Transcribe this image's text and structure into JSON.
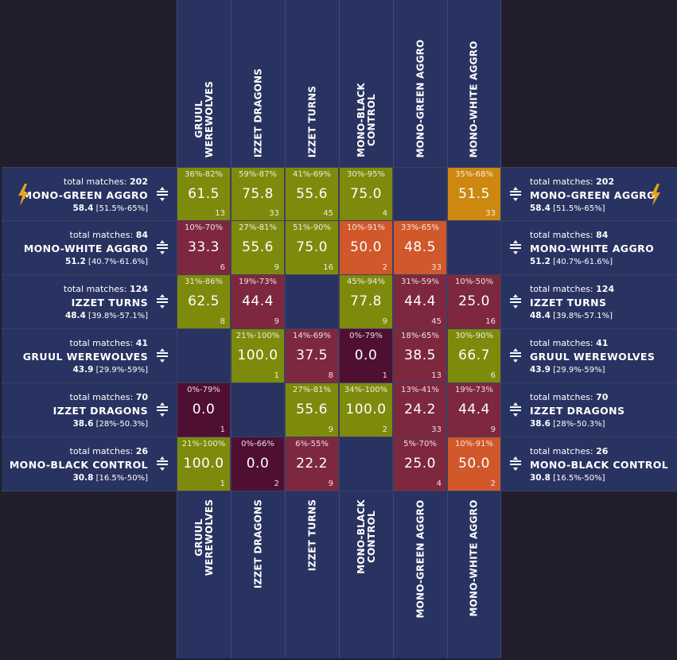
{
  "columns": [
    {
      "label": "GRUUL\nWEREWOLVES"
    },
    {
      "label": "IZZET DRAGONS"
    },
    {
      "label": "IZZET TURNS"
    },
    {
      "label": "MONO-BLACK\nCONTROL"
    },
    {
      "label": "MONO-GREEN AGGRO"
    },
    {
      "label": "MONO-WHITE AGGRO"
    }
  ],
  "rows": [
    {
      "count_label": "total matches:",
      "count": "202",
      "name": "MONO-GREEN AGGRO",
      "score": "58.4",
      "interval": "[51.5%-65%]",
      "icon": "lightning-bolt-icon"
    },
    {
      "count_label": "total matches:",
      "count": "84",
      "name": "MONO-WHITE AGGRO",
      "score": "51.2",
      "interval": "[40.7%-61.6%]",
      "icon": ""
    },
    {
      "count_label": "total matches:",
      "count": "124",
      "name": "IZZET TURNS",
      "score": "48.4",
      "interval": "[39.8%-57.1%]",
      "icon": ""
    },
    {
      "count_label": "total matches:",
      "count": "41",
      "name": "GRUUL WEREWOLVES",
      "score": "43.9",
      "interval": "[29.9%-59%]",
      "icon": ""
    },
    {
      "count_label": "total matches:",
      "count": "70",
      "name": "IZZET DRAGONS",
      "score": "38.6",
      "interval": "[28%-50.3%]",
      "icon": ""
    },
    {
      "count_label": "total matches:",
      "count": "26",
      "name": "MONO-BLACK CONTROL",
      "score": "30.8",
      "interval": "[16.5%-50%]",
      "icon": ""
    }
  ],
  "cells": [
    [
      {
        "interval": "36%-82%",
        "winrate": "61.5",
        "matches": "13",
        "color": "#7e8a0c"
      },
      {
        "interval": "59%-87%",
        "winrate": "75.8",
        "matches": "33",
        "color": "#7e8a0c"
      },
      {
        "interval": "41%-69%",
        "winrate": "55.6",
        "matches": "45",
        "color": "#7e8a0c"
      },
      {
        "interval": "30%-95%",
        "winrate": "75.0",
        "matches": "4",
        "color": "#7e8a0c"
      },
      null,
      {
        "interval": "35%-68%",
        "winrate": "51.5",
        "matches": "33",
        "color": "#cc8810"
      }
    ],
    [
      {
        "interval": "10%-70%",
        "winrate": "33.3",
        "matches": "6",
        "color": "#7e2840"
      },
      {
        "interval": "27%-81%",
        "winrate": "55.6",
        "matches": "9",
        "color": "#7e8a0c"
      },
      {
        "interval": "51%-90%",
        "winrate": "75.0",
        "matches": "16",
        "color": "#7e8a0c"
      },
      {
        "interval": "10%-91%",
        "winrate": "50.0",
        "matches": "2",
        "color": "#d0582a"
      },
      {
        "interval": "33%-65%",
        "winrate": "48.5",
        "matches": "33",
        "color": "#d0582a"
      },
      null
    ],
    [
      {
        "interval": "31%-86%",
        "winrate": "62.5",
        "matches": "8",
        "color": "#7e8a0c"
      },
      {
        "interval": "19%-73%",
        "winrate": "44.4",
        "matches": "9",
        "color": "#7e2840"
      },
      null,
      {
        "interval": "45%-94%",
        "winrate": "77.8",
        "matches": "9",
        "color": "#7e8a0c"
      },
      {
        "interval": "31%-59%",
        "winrate": "44.4",
        "matches": "45",
        "color": "#7e2840"
      },
      {
        "interval": "10%-50%",
        "winrate": "25.0",
        "matches": "16",
        "color": "#7e2840"
      }
    ],
    [
      null,
      {
        "interval": "21%-100%",
        "winrate": "100.0",
        "matches": "1",
        "color": "#7e8a0c"
      },
      {
        "interval": "14%-69%",
        "winrate": "37.5",
        "matches": "8",
        "color": "#7e2840"
      },
      {
        "interval": "0%-79%",
        "winrate": "0.0",
        "matches": "1",
        "color": "#4e0f32"
      },
      {
        "interval": "18%-65%",
        "winrate": "38.5",
        "matches": "13",
        "color": "#7e2840"
      },
      {
        "interval": "30%-90%",
        "winrate": "66.7",
        "matches": "6",
        "color": "#7e8a0c"
      }
    ],
    [
      {
        "interval": "0%-79%",
        "winrate": "0.0",
        "matches": "1",
        "color": "#4e0f32"
      },
      null,
      {
        "interval": "27%-81%",
        "winrate": "55.6",
        "matches": "9",
        "color": "#7e8a0c"
      },
      {
        "interval": "34%-100%",
        "winrate": "100.0",
        "matches": "2",
        "color": "#7e8a0c"
      },
      {
        "interval": "13%-41%",
        "winrate": "24.2",
        "matches": "33",
        "color": "#7e2840"
      },
      {
        "interval": "19%-73%",
        "winrate": "44.4",
        "matches": "9",
        "color": "#7e2840"
      }
    ],
    [
      {
        "interval": "21%-100%",
        "winrate": "100.0",
        "matches": "1",
        "color": "#7e8a0c"
      },
      {
        "interval": "0%-66%",
        "winrate": "0.0",
        "matches": "2",
        "color": "#4e0f32"
      },
      {
        "interval": "6%-55%",
        "winrate": "22.2",
        "matches": "9",
        "color": "#7e2840"
      },
      null,
      {
        "interval": "5%-70%",
        "winrate": "25.0",
        "matches": "4",
        "color": "#7e2840"
      },
      {
        "interval": "10%-91%",
        "winrate": "50.0",
        "matches": "2",
        "color": "#d0582a"
      }
    ]
  ],
  "colors": {
    "header_bg": "#283361",
    "page_bg": "#221f2c",
    "bolt": "#e8a317"
  }
}
